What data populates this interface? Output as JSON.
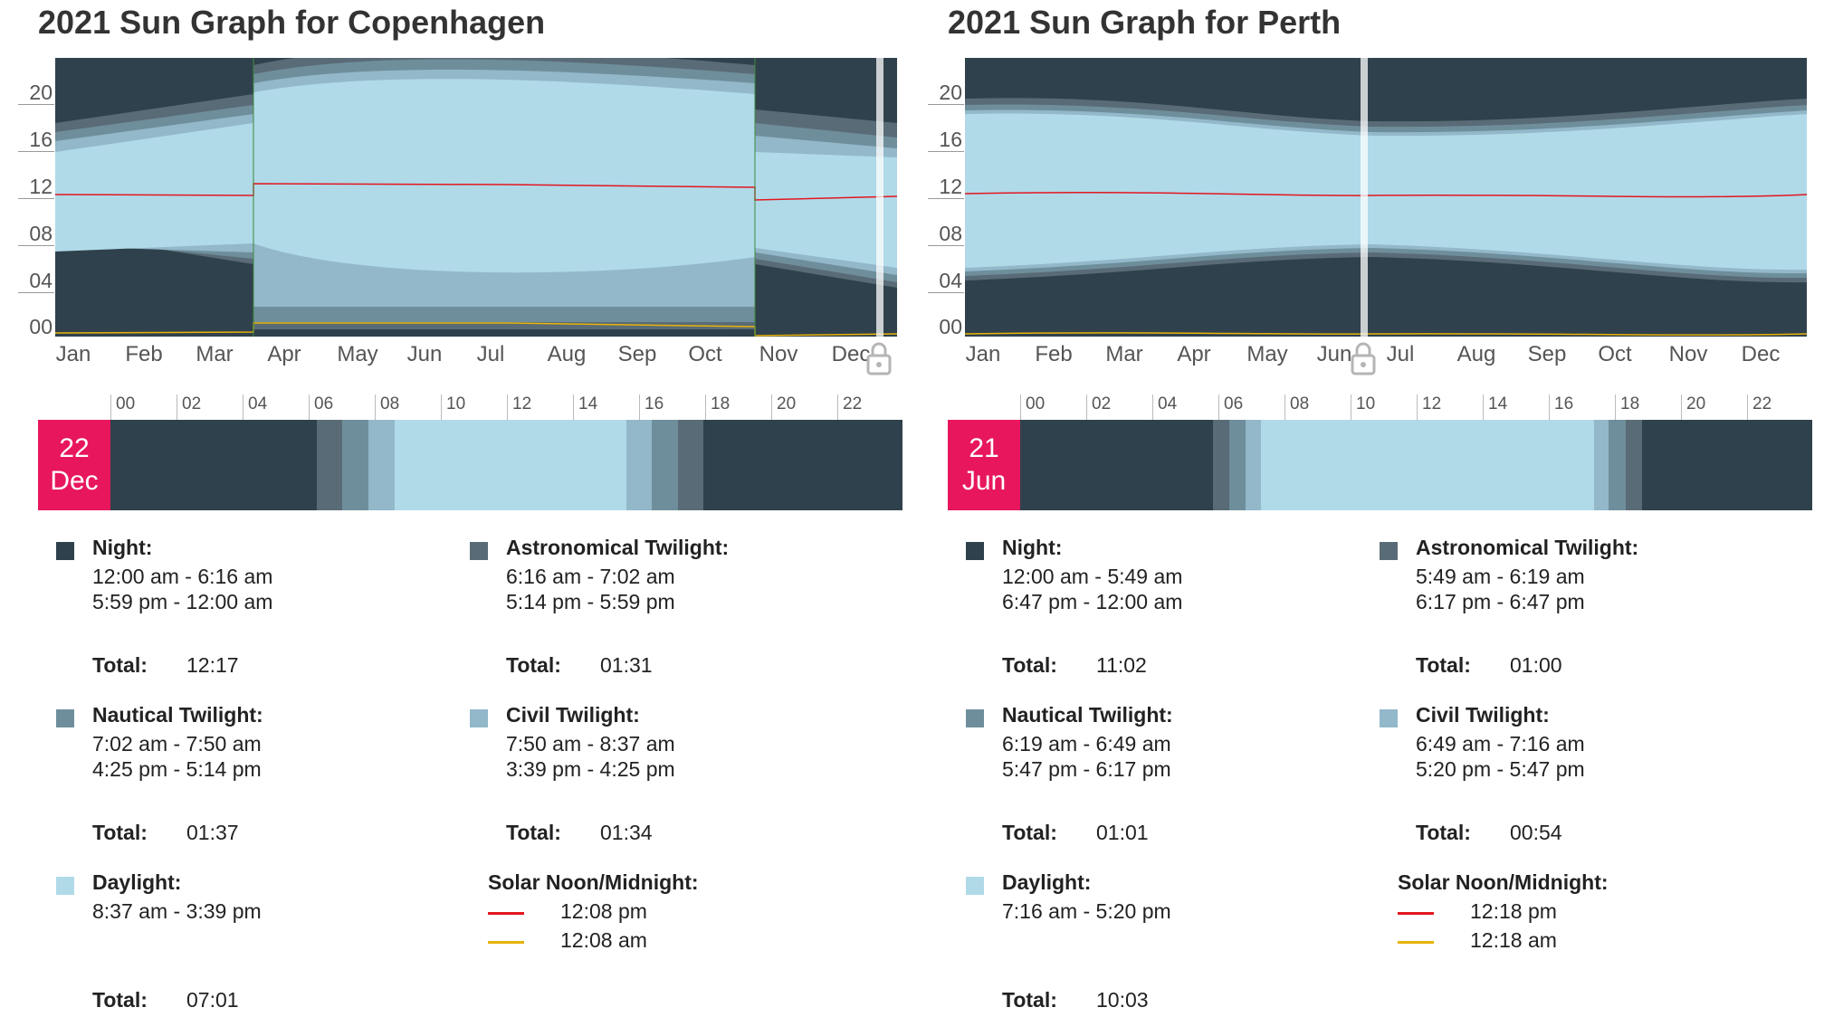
{
  "colors": {
    "night": "#2f414c",
    "astronomical": "#596b76",
    "nautical": "#6f8e9b",
    "civil": "#92b8c9",
    "daylight": "#b0dae8",
    "solar_noon": "#e3161f",
    "solar_midnight": "#e8b30b",
    "date_box": "#e8175d"
  },
  "y_ticks": [
    "20",
    "16",
    "12",
    "08",
    "04",
    "00"
  ],
  "months": [
    "Jan",
    "Feb",
    "Mar",
    "Apr",
    "May",
    "Jun",
    "Jul",
    "Aug",
    "Sep",
    "Oct",
    "Nov",
    "Dec"
  ],
  "hour_ticks": [
    "00",
    "02",
    "04",
    "06",
    "08",
    "10",
    "12",
    "14",
    "16",
    "18",
    "20",
    "22"
  ],
  "panels": [
    {
      "title": "2021 Sun Graph for Copenhagen",
      "date_day": "22",
      "date_month": "Dec",
      "lock_icon": "lock-icon",
      "night": {
        "label": "Night:",
        "range1": "12:00 am - 6:16 am",
        "range2": "5:59 pm - 12:00 am",
        "total_label": "Total:",
        "total": "12:17"
      },
      "astronomical": {
        "label": "Astronomical Twilight:",
        "range1": "6:16 am - 7:02 am",
        "range2": "5:14 pm - 5:59 pm",
        "total_label": "Total:",
        "total": "01:31"
      },
      "nautical": {
        "label": "Nautical Twilight:",
        "range1": "7:02 am - 7:50 am",
        "range2": "4:25 pm - 5:14 pm",
        "total_label": "Total:",
        "total": "01:37"
      },
      "civil": {
        "label": "Civil Twilight:",
        "range1": "7:50 am - 8:37 am",
        "range2": "3:39 pm - 4:25 pm",
        "total_label": "Total:",
        "total": "01:34"
      },
      "daylight": {
        "label": "Daylight:",
        "range1": "8:37 am - 3:39 pm",
        "total_label": "Total:",
        "total": "07:01"
      },
      "solar": {
        "label": "Solar Noon/Midnight:",
        "noon": "12:08 pm",
        "midnight": "12:08 am"
      }
    },
    {
      "title": "2021 Sun Graph for Perth",
      "date_day": "21",
      "date_month": "Jun",
      "lock_icon": "lock-icon",
      "night": {
        "label": "Night:",
        "range1": "12:00 am - 5:49 am",
        "range2": "6:47 pm - 12:00 am",
        "total_label": "Total:",
        "total": "11:02"
      },
      "astronomical": {
        "label": "Astronomical Twilight:",
        "range1": "5:49 am - 6:19 am",
        "range2": "6:17 pm - 6:47 pm",
        "total_label": "Total:",
        "total": "01:00"
      },
      "nautical": {
        "label": "Nautical Twilight:",
        "range1": "6:19 am - 6:49 am",
        "range2": "5:47 pm - 6:17 pm",
        "total_label": "Total:",
        "total": "01:01"
      },
      "civil": {
        "label": "Civil Twilight:",
        "range1": "6:49 am - 7:16 am",
        "range2": "5:20 pm - 5:47 pm",
        "total_label": "Total:",
        "total": "00:54"
      },
      "daylight": {
        "label": "Daylight:",
        "range1": "7:16 am - 5:20 pm",
        "total_label": "Total:",
        "total": "10:03"
      },
      "solar": {
        "label": "Solar Noon/Midnight:",
        "noon": "12:18 pm",
        "midnight": "12:18 am"
      }
    }
  ]
}
